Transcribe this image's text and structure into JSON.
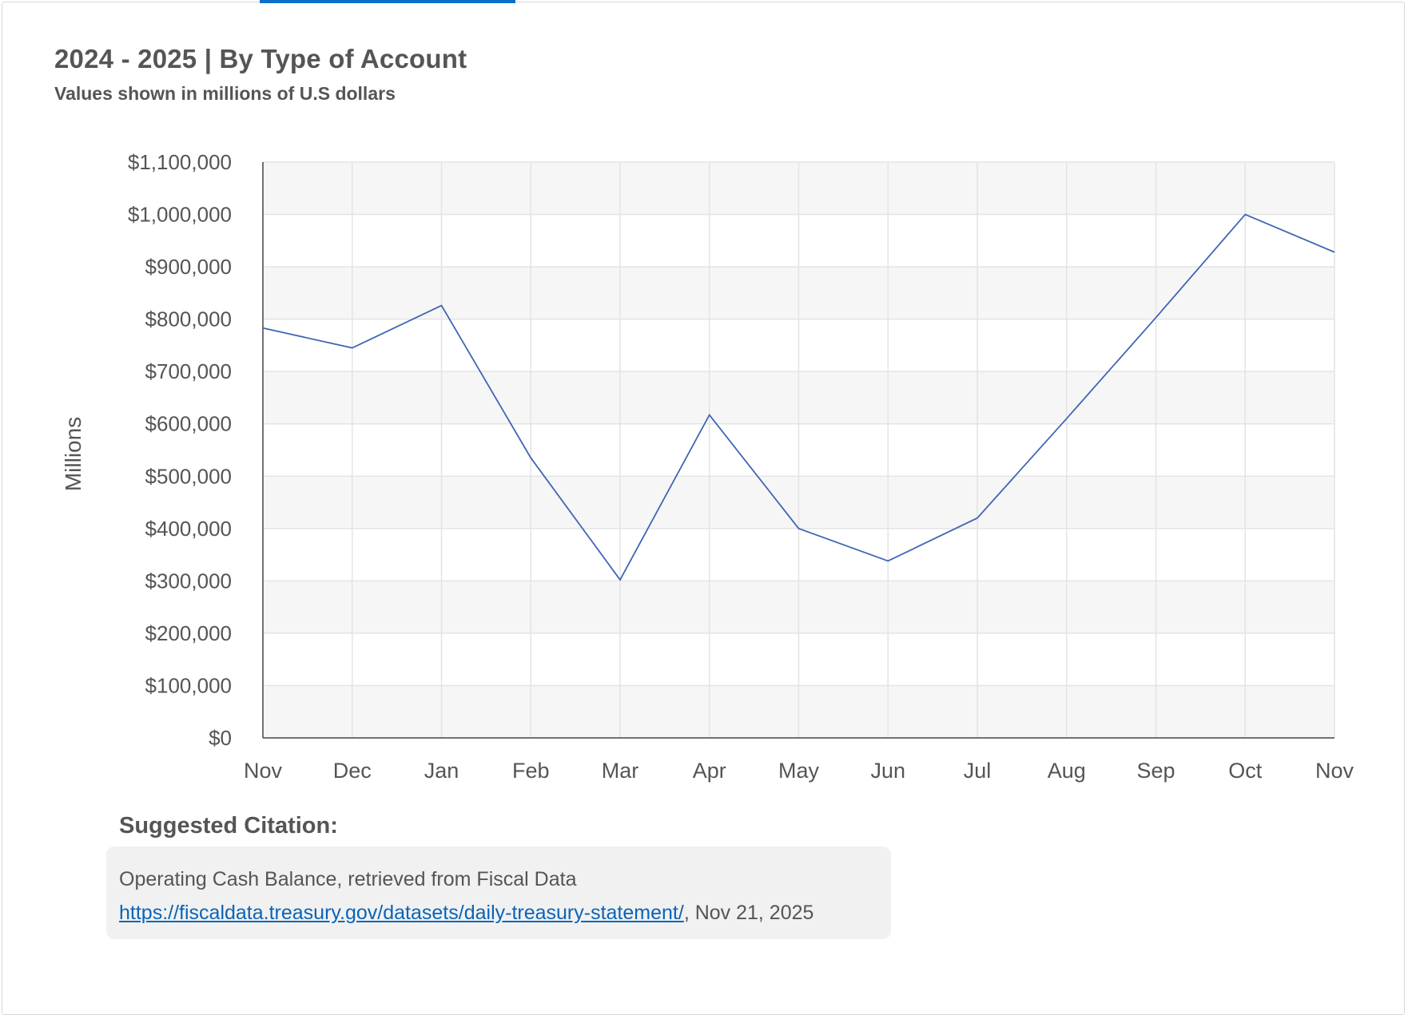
{
  "chart_header": {
    "title": "2024 - 2025 | By Type of Account",
    "subtitle": "Values shown in millions of U.S dollars"
  },
  "citation": {
    "heading": "Suggested Citation:",
    "text": "Operating Cash Balance, retrieved from Fiscal Data",
    "link_text": "https://fiscaldata.treasury.gov/datasets/daily-treasury-statement/",
    "suffix": ", Nov 21, 2025"
  },
  "colors": {
    "line": "#3f66b3",
    "accent": "#0a70c9",
    "link": "#0a64b8",
    "plot_band": "#f6f6f6",
    "grid": "#e4e4e4"
  },
  "chart_data": {
    "type": "line",
    "title": "2024 - 2025 | By Type of Account",
    "subtitle": "Values shown in millions of U.S dollars",
    "xlabel": "",
    "ylabel": "Millions",
    "categories": [
      "Nov",
      "Dec",
      "Jan",
      "Feb",
      "Mar",
      "Apr",
      "May",
      "Jun",
      "Jul",
      "Aug",
      "Sep",
      "Oct",
      "Nov"
    ],
    "series": [
      {
        "values": [
          783000,
          745000,
          826000,
          535000,
          302000,
          617000,
          400000,
          338000,
          420000,
          610000,
          803000,
          1000000,
          928000
        ]
      }
    ],
    "ylim": [
      0,
      1100000
    ],
    "yticks": [
      "$0",
      "$100,000",
      "$200,000",
      "$300,000",
      "$400,000",
      "$500,000",
      "$600,000",
      "$700,000",
      "$800,000",
      "$900,000",
      "$1,000,000",
      "$1,100,000"
    ],
    "grid": true,
    "legend": "none"
  }
}
